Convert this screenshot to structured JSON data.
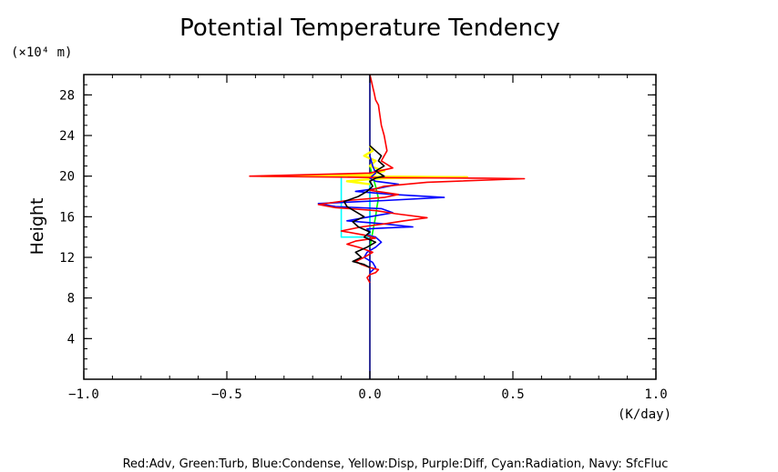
{
  "chart_data": {
    "type": "line",
    "title": "Potential Temperature Tendency",
    "ylabel": "Height",
    "yunit_label": "(×10⁴ m)",
    "xunit_label": "(K/day)",
    "caption": "Red:Adv, Green:Turb, Blue:Condense, Yellow:Disp, Purple:Diff, Cyan:Radiation, Navy: SfcFluc",
    "xlim": [
      -1.0,
      1.0
    ],
    "ylim": [
      0,
      30
    ],
    "xticks": [
      -1.0,
      -0.5,
      0.0,
      0.5,
      1.0
    ],
    "xtick_labels": [
      "−1.0",
      "−0.5",
      "0.0",
      "0.5",
      "1.0"
    ],
    "yticks": [
      4,
      8,
      12,
      16,
      20,
      24,
      28
    ],
    "ytick_labels": [
      "4",
      "8",
      "12",
      "16",
      "20",
      "24",
      "28"
    ],
    "grid": false,
    "series": [
      {
        "color": "#000080",
        "x": [
          0.0,
          0.0
        ],
        "y": [
          0,
          30
        ]
      },
      {
        "color": "#00ffff",
        "x": [
          0.0,
          -0.1,
          -0.1,
          0.0,
          0.0
        ],
        "y": [
          14,
          14,
          20,
          20,
          14
        ]
      },
      {
        "color": "#00ff00",
        "x": [
          0.0,
          0.01,
          0.02,
          0.025,
          0.03,
          0.02,
          0.01,
          0.0
        ],
        "y": [
          13.0,
          14.5,
          16.0,
          17.0,
          17.8,
          19.0,
          20.0,
          21.0
        ]
      },
      {
        "color": "#ffff00",
        "x": [
          0.0,
          -0.08,
          0.0,
          0.06,
          0.2,
          0.34,
          0.1,
          -0.38,
          0.0,
          0.05,
          0.0,
          0.02,
          -0.02,
          0.01,
          0.0
        ],
        "y": [
          19.2,
          19.5,
          19.7,
          19.8,
          19.85,
          19.9,
          19.95,
          20.0,
          20.1,
          20.5,
          21.0,
          21.5,
          22.0,
          22.5,
          23.0
        ]
      },
      {
        "color": "#0000ff",
        "x": [
          0.0,
          0.02,
          0.01,
          -0.02,
          -0.01,
          0.02,
          0.04,
          0.02,
          -0.01,
          0.0,
          -0.01,
          0.06,
          0.15,
          0.05,
          -0.08,
          0.0,
          0.08,
          0.04,
          -0.12,
          -0.18,
          0.05,
          0.26,
          0.08,
          -0.05,
          0.03,
          0.1,
          0.02,
          0.0,
          0.02,
          0.01,
          0.0
        ],
        "y": [
          10.5,
          11.0,
          11.5,
          12.0,
          12.5,
          13.0,
          13.5,
          14.0,
          14.2,
          14.5,
          14.8,
          14.9,
          15.0,
          15.3,
          15.6,
          16.0,
          16.4,
          16.8,
          17.0,
          17.3,
          17.6,
          17.9,
          18.2,
          18.5,
          18.8,
          19.2,
          19.5,
          19.8,
          20.3,
          21.0,
          22.0
        ]
      },
      {
        "color": "#ff0000",
        "x": [
          0.0,
          -0.01,
          0.0,
          0.02,
          0.03,
          0.0,
          -0.03,
          -0.05,
          -0.02,
          0.01,
          -0.04,
          -0.08,
          -0.05,
          0.02,
          -0.02,
          -0.1,
          -0.03,
          0.05,
          0.12,
          0.2,
          0.09,
          0.02,
          -0.12,
          -0.18,
          -0.08,
          0.05,
          0.1,
          0.0,
          0.05,
          0.2,
          0.54,
          0.4,
          0.05,
          -0.42,
          0.0,
          0.08,
          0.04,
          0.06,
          0.05,
          0.04,
          0.035,
          0.03,
          0.02,
          0.015,
          0.01,
          0.005,
          0.0
        ],
        "y": [
          9.5,
          10.0,
          10.3,
          10.5,
          10.8,
          11.0,
          11.3,
          11.6,
          12.0,
          12.5,
          13.0,
          13.3,
          13.6,
          13.9,
          14.2,
          14.6,
          15.0,
          15.3,
          15.6,
          15.9,
          16.3,
          16.6,
          16.9,
          17.2,
          17.6,
          17.9,
          18.2,
          18.6,
          19.0,
          19.4,
          19.75,
          19.8,
          19.85,
          20.0,
          20.3,
          20.8,
          21.5,
          22.5,
          24.0,
          25.0,
          26.0,
          27.0,
          27.5,
          28.2,
          28.8,
          29.4,
          30.0
        ]
      },
      {
        "color": "#000000",
        "x": [
          0.0,
          -0.02,
          -0.06,
          -0.03,
          -0.05,
          -0.01,
          0.02,
          -0.02,
          0.0,
          -0.04,
          -0.06,
          -0.02,
          -0.05,
          -0.08,
          -0.09,
          -0.04,
          -0.01,
          0.01,
          0.0,
          0.02,
          0.05,
          0.02,
          0.05,
          0.03,
          0.04,
          0.02,
          0.0
        ],
        "y": [
          11.0,
          11.3,
          11.6,
          12.0,
          12.5,
          13.0,
          13.5,
          14.0,
          14.5,
          15.0,
          15.5,
          16.0,
          16.5,
          17.0,
          17.5,
          18.0,
          18.5,
          19.0,
          19.5,
          19.8,
          20.0,
          20.5,
          21.0,
          21.5,
          22.0,
          22.5,
          23.0
        ]
      }
    ]
  }
}
